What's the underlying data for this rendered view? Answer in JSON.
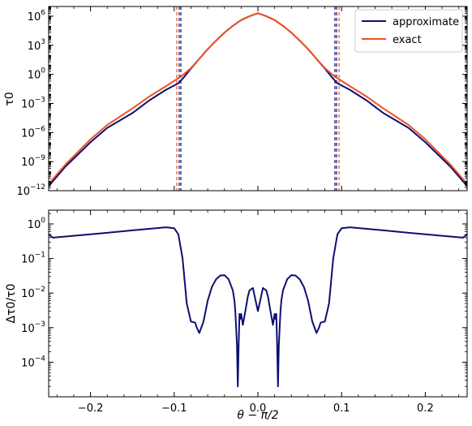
{
  "chart_data": [
    {
      "type": "line",
      "panel": "top",
      "ylabel": "τ0",
      "yscale": "log",
      "ylim": [
        1e-12,
        10000000.0
      ],
      "xlim": [
        -0.25,
        0.25
      ],
      "y_ticks": [
        {
          "value": 1000000.0,
          "mant": "10",
          "exp": "6"
        },
        {
          "value": 1000.0,
          "mant": "10",
          "exp": "3"
        },
        {
          "value": 1.0,
          "mant": "10",
          "exp": "0"
        },
        {
          "value": 0.001,
          "mant": "10",
          "exp": "−3"
        },
        {
          "value": 1e-06,
          "mant": "10",
          "exp": "−6"
        },
        {
          "value": 1e-09,
          "mant": "10",
          "exp": "−9"
        },
        {
          "value": 1e-12,
          "mant": "10",
          "exp": "−12"
        }
      ],
      "legend": {
        "placement": "top-right"
      },
      "series": [
        {
          "name": "approximate",
          "color": "#0d0f73",
          "x": [
            -0.25,
            -0.23,
            -0.2,
            -0.18,
            -0.15,
            -0.13,
            -0.11,
            -0.095,
            -0.09,
            -0.08,
            -0.07,
            -0.06,
            -0.05,
            -0.04,
            -0.03,
            -0.02,
            -0.01,
            0,
            0.01,
            0.02,
            0.03,
            0.04,
            0.05,
            0.06,
            0.07,
            0.08,
            0.09,
            0.095,
            0.11,
            0.13,
            0.15,
            0.18,
            0.2,
            0.23,
            0.25
          ],
          "y": [
            3e-12,
            3e-10,
            1e-07,
            3e-06,
            0.0001,
            0.002,
            0.025,
            0.12,
            0.35,
            4,
            40,
            400,
            3000,
            20000.0,
            100000.0,
            400000.0,
            1000000.0,
            2000000.0,
            1000000.0,
            400000.0,
            100000.0,
            20000.0,
            3000,
            400,
            40,
            4,
            0.35,
            0.12,
            0.025,
            0.002,
            0.0001,
            3e-06,
            1e-07,
            3e-10,
            3e-12
          ]
        },
        {
          "name": "exact",
          "color": "#f05223",
          "x": [
            -0.25,
            -0.23,
            -0.2,
            -0.18,
            -0.15,
            -0.13,
            -0.11,
            -0.095,
            -0.09,
            -0.08,
            -0.07,
            -0.06,
            -0.05,
            -0.04,
            -0.03,
            -0.02,
            -0.01,
            0,
            0.01,
            0.02,
            0.03,
            0.04,
            0.05,
            0.06,
            0.07,
            0.08,
            0.09,
            0.095,
            0.11,
            0.13,
            0.15,
            0.18,
            0.2,
            0.23,
            0.25
          ],
          "y": [
            5e-12,
            5e-10,
            2e-07,
            6e-06,
            0.0003,
            0.005,
            0.06,
            0.4,
            0.8,
            4.5,
            40,
            400,
            3000,
            20000.0,
            100000.0,
            400000.0,
            1000000.0,
            2000000.0,
            1000000.0,
            400000.0,
            100000.0,
            20000.0,
            3000,
            400,
            40,
            4.5,
            0.8,
            0.4,
            0.06,
            0.005,
            0.0003,
            6e-06,
            2e-07,
            5e-10,
            5e-12
          ]
        }
      ],
      "vlines": [
        {
          "x": -0.097,
          "color": "#f05223"
        },
        {
          "x": -0.094,
          "color": "#0d0f73"
        },
        {
          "x": -0.092,
          "color": "#0d0f73"
        },
        {
          "x": 0.092,
          "color": "#0d0f73"
        },
        {
          "x": 0.094,
          "color": "#0d0f73"
        },
        {
          "x": 0.097,
          "color": "#f05223"
        }
      ]
    },
    {
      "type": "line",
      "panel": "bottom",
      "ylabel": "Δτ0/τ0",
      "xlabel": "θ − π/2",
      "yscale": "log",
      "ylim": [
        1e-05,
        2.5
      ],
      "xlim": [
        -0.25,
        0.25
      ],
      "y_ticks": [
        {
          "value": 1,
          "mant": "10",
          "exp": "0"
        },
        {
          "value": 0.1,
          "mant": "10",
          "exp": "−1"
        },
        {
          "value": 0.01,
          "mant": "10",
          "exp": "−2"
        },
        {
          "value": 0.001,
          "mant": "10",
          "exp": "−3"
        },
        {
          "value": 0.0001,
          "mant": "10",
          "exp": "−4"
        }
      ],
      "x_ticks": [
        {
          "value": -0.2,
          "label": "−0.2"
        },
        {
          "value": -0.1,
          "label": "−0.1"
        },
        {
          "value": 0,
          "label": "0.0"
        },
        {
          "value": 0.1,
          "label": "0.1"
        },
        {
          "value": 0.2,
          "label": "0.2"
        }
      ],
      "series": [
        {
          "name": "",
          "color": "#0d0f73",
          "x": [
            -0.25,
            -0.245,
            -0.2,
            -0.15,
            -0.11,
            -0.1,
            -0.095,
            -0.09,
            -0.085,
            -0.08,
            -0.075,
            -0.073,
            -0.07,
            -0.065,
            -0.06,
            -0.055,
            -0.05,
            -0.045,
            -0.04,
            -0.035,
            -0.03,
            -0.028,
            -0.027,
            -0.026,
            -0.025,
            -0.024,
            -0.023,
            -0.022,
            -0.021,
            -0.02,
            -0.018,
            -0.015,
            -0.012,
            -0.01,
            -0.006,
            0,
            0.006,
            0.01,
            0.012,
            0.015,
            0.018,
            0.02,
            0.021,
            0.022,
            0.023,
            0.024,
            0.025,
            0.026,
            0.027,
            0.028,
            0.03,
            0.035,
            0.04,
            0.045,
            0.05,
            0.055,
            0.06,
            0.065,
            0.07,
            0.073,
            0.075,
            0.08,
            0.085,
            0.09,
            0.095,
            0.1,
            0.11,
            0.15,
            0.2,
            0.245,
            0.25
          ],
          "y": [
            0.5,
            0.4,
            0.5,
            0.65,
            0.8,
            0.75,
            0.5,
            0.1,
            0.005,
            0.0015,
            0.0014,
            0.001,
            0.0007,
            0.0015,
            0.006,
            0.015,
            0.025,
            0.032,
            0.033,
            0.025,
            0.012,
            0.006,
            0.003,
            0.001,
            0.0003,
            2e-05,
            0.0003,
            0.0025,
            0.0018,
            0.0025,
            0.0012,
            0.003,
            0.008,
            0.012,
            0.014,
            0.003,
            0.014,
            0.012,
            0.008,
            0.003,
            0.0012,
            0.0025,
            0.0018,
            0.0025,
            0.0003,
            2e-05,
            0.0003,
            0.001,
            0.003,
            0.006,
            0.012,
            0.025,
            0.033,
            0.032,
            0.025,
            0.015,
            0.006,
            0.0015,
            0.0007,
            0.001,
            0.0014,
            0.0015,
            0.005,
            0.1,
            0.5,
            0.75,
            0.8,
            0.65,
            0.5,
            0.4,
            0.5
          ]
        }
      ]
    }
  ]
}
